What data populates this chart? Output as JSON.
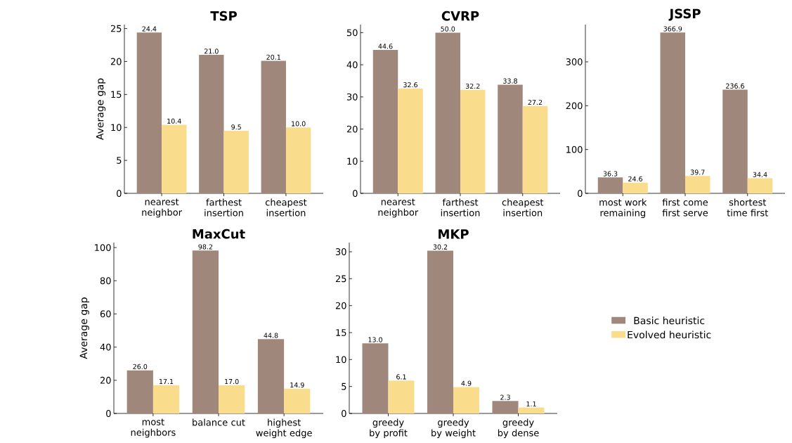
{
  "chart_data": [
    {
      "type": "bar",
      "title": "TSP",
      "ylabel": "Average gap",
      "categories": [
        "nearest neighbor",
        "farthest insertion",
        "cheapest insertion"
      ],
      "series": [
        {
          "color": "#a0877b",
          "values": [
            24.4,
            21.0,
            20.1
          ],
          "value_labels": [
            "24.4",
            "21.0",
            "20.1"
          ]
        },
        {
          "color": "#f9dc8c",
          "values": [
            10.4,
            9.5,
            10.0
          ],
          "value_labels": [
            "10.4",
            "9.5",
            "10.0"
          ]
        }
      ],
      "ylim": [
        0,
        25.6
      ],
      "yticks": [
        0,
        5,
        10,
        15,
        20,
        25
      ]
    },
    {
      "type": "bar",
      "title": "CVRP",
      "categories": [
        "nearest neighbor",
        "farthest insertion",
        "cheapest insertion"
      ],
      "series": [
        {
          "color": "#a0877b",
          "values": [
            44.6,
            50.0,
            33.8
          ],
          "value_labels": [
            "44.6",
            "50.0",
            "33.8"
          ]
        },
        {
          "color": "#f9dc8c",
          "values": [
            32.6,
            32.2,
            27.2
          ],
          "value_labels": [
            "32.6",
            "32.2",
            "27.2"
          ]
        }
      ],
      "ylim": [
        0,
        52.5
      ],
      "yticks": [
        0,
        10,
        20,
        30,
        40,
        50
      ]
    },
    {
      "type": "bar",
      "title": "JSSP",
      "categories": [
        "most work remaining",
        "first come first serve",
        "shortest time first"
      ],
      "series": [
        {
          "color": "#a0877b",
          "values": [
            36.3,
            366.9,
            236.6
          ],
          "value_labels": [
            "36.3",
            "366.9",
            "236.6"
          ]
        },
        {
          "color": "#f9dc8c",
          "values": [
            24.6,
            39.7,
            34.4
          ],
          "value_labels": [
            "24.6",
            "39.7",
            "34.4"
          ]
        }
      ],
      "ylim": [
        0,
        385
      ],
      "yticks": [
        0,
        100,
        200,
        300
      ]
    },
    {
      "type": "bar",
      "title": "MaxCut",
      "ylabel": "Average gap",
      "categories": [
        "most neighbors",
        "balance cut",
        "highest weight edge"
      ],
      "series": [
        {
          "color": "#a0877b",
          "values": [
            26.0,
            98.2,
            44.8
          ],
          "value_labels": [
            "26.0",
            "98.2",
            "44.8"
          ]
        },
        {
          "color": "#f9dc8c",
          "values": [
            17.1,
            17.0,
            14.9
          ],
          "value_labels": [
            "17.1",
            "17.0",
            "14.9"
          ]
        }
      ],
      "ylim": [
        0,
        103
      ],
      "yticks": [
        0,
        20,
        40,
        60,
        80,
        100
      ]
    },
    {
      "type": "bar",
      "title": "MKP",
      "categories": [
        "greedy by profit",
        "greedy by weight",
        "greedy by dense"
      ],
      "series": [
        {
          "name": "Basic heuristic",
          "color": "#a0877b",
          "values": [
            13.0,
            30.2,
            2.3
          ],
          "value_labels": [
            "13.0",
            "30.2",
            "2.3"
          ]
        },
        {
          "name": "Evolved heuristic",
          "color": "#f9dc8c",
          "values": [
            6.1,
            4.9,
            1.1
          ],
          "value_labels": [
            "6.1",
            "4.9",
            "1.1"
          ]
        }
      ],
      "ylim": [
        0,
        31.7
      ],
      "yticks": [
        0,
        5,
        10,
        15,
        20,
        25,
        30
      ],
      "legend": "right"
    }
  ]
}
